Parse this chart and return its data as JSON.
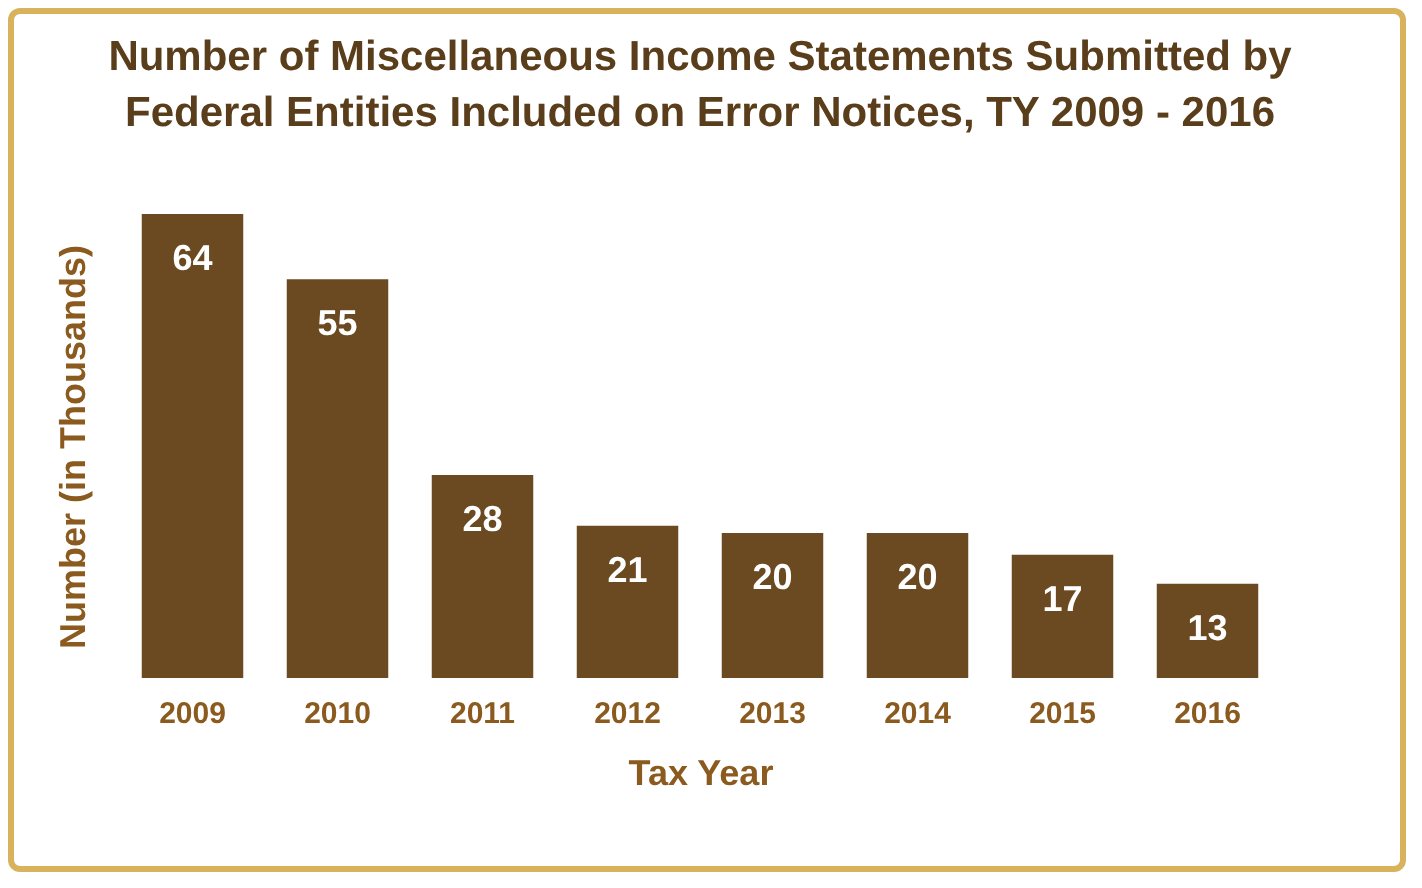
{
  "chart_data": {
    "type": "bar",
    "title": "Number of Miscellaneous Income Statements Submitted by Federal Entities Included on Error Notices, TY 2009 - 2016",
    "xlabel": "Tax Year",
    "ylabel": "Number (in Thousands)",
    "categories": [
      "2009",
      "2010",
      "2011",
      "2012",
      "2013",
      "2014",
      "2015",
      "2016"
    ],
    "values": [
      64,
      55,
      28,
      21,
      20,
      20,
      17,
      13
    ],
    "color": "#6b4a22",
    "data_labels": true,
    "grid": false
  }
}
